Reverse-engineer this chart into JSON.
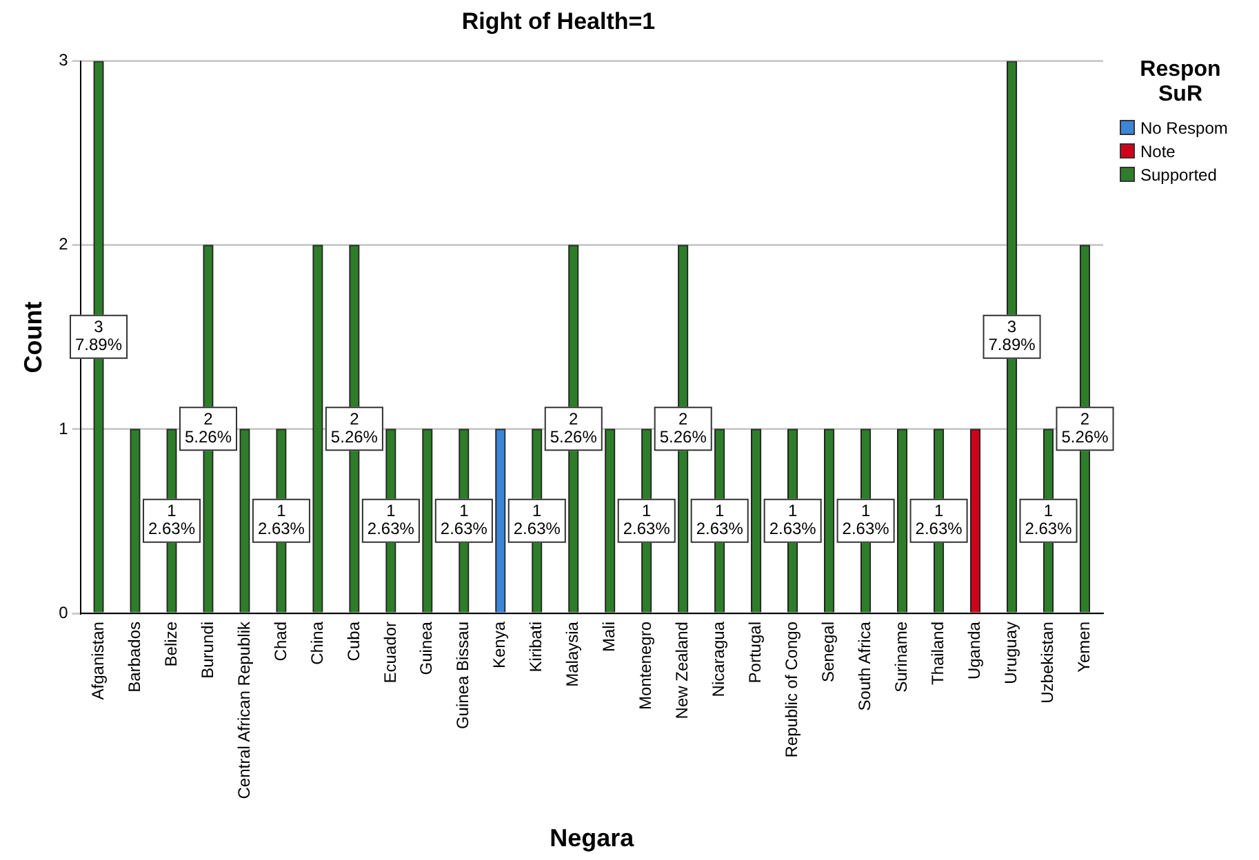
{
  "chart_data": {
    "type": "bar",
    "title": "Right of Health=1",
    "xlabel": "Negara",
    "ylabel": "Count",
    "legend_title": "Respon SuR",
    "categories": [
      "Afganistan",
      "Barbados",
      "Belize",
      "Burundi",
      "Central African Republik",
      "Chad",
      "China",
      "Cuba",
      "Ecuador",
      "Guinea",
      "Guinea Bissau",
      "Kenya",
      "Kiribati",
      "Malaysia",
      "Mali",
      "Montenegro",
      "New Zealand",
      "Nicaragua",
      "Portugal",
      "Republic of Congo",
      "Senegal",
      "South Africa",
      "Suriname",
      "Thailand",
      "Uganda",
      "Uruguay",
      "Uzbekistan",
      "Yemen"
    ],
    "series": [
      {
        "name": "No Respom",
        "color": "#3d85d6",
        "values": [
          null,
          null,
          null,
          null,
          null,
          null,
          null,
          null,
          null,
          null,
          null,
          1,
          null,
          null,
          null,
          null,
          null,
          null,
          null,
          null,
          null,
          null,
          null,
          null,
          null,
          null,
          null,
          null
        ],
        "value_labels": [
          null,
          null,
          null,
          null,
          null,
          null,
          null,
          null,
          null,
          null,
          null,
          null,
          null,
          null,
          null,
          null,
          null,
          null,
          null,
          null,
          null,
          null,
          null,
          null,
          null,
          null,
          null,
          null
        ]
      },
      {
        "name": "Note",
        "color": "#d0021b",
        "values": [
          null,
          null,
          null,
          null,
          null,
          null,
          null,
          null,
          null,
          null,
          null,
          null,
          null,
          null,
          null,
          null,
          null,
          null,
          null,
          null,
          null,
          null,
          null,
          null,
          1,
          null,
          null,
          null
        ],
        "value_labels": [
          null,
          null,
          null,
          null,
          null,
          null,
          null,
          null,
          null,
          null,
          null,
          null,
          null,
          null,
          null,
          null,
          null,
          null,
          null,
          null,
          null,
          null,
          null,
          null,
          null,
          null,
          null,
          null
        ]
      },
      {
        "name": "Supported",
        "color": "#2e7d2a",
        "values": [
          3,
          1,
          1,
          2,
          1,
          1,
          2,
          2,
          1,
          1,
          1,
          null,
          1,
          2,
          1,
          1,
          2,
          1,
          1,
          1,
          1,
          1,
          1,
          1,
          null,
          3,
          1,
          2
        ],
        "value_labels": [
          "3\n7.89%",
          null,
          "1\n2.63%",
          "2\n5.26%",
          null,
          "1\n2.63%",
          null,
          "2\n5.26%",
          "1\n2.63%",
          null,
          "1\n2.63%",
          null,
          "1\n2.63%",
          "2\n5.26%",
          null,
          "1\n2.63%",
          "2\n5.26%",
          "1\n2.63%",
          null,
          "1\n2.63%",
          null,
          "1\n2.63%",
          null,
          "1\n2.63%",
          null,
          "3\n7.89%",
          "1\n2.63%",
          "2\n5.26%"
        ]
      }
    ],
    "ylim": [
      0,
      3
    ],
    "yticks": [
      0,
      1,
      2,
      3
    ],
    "grid": "y",
    "legend": "top right"
  }
}
